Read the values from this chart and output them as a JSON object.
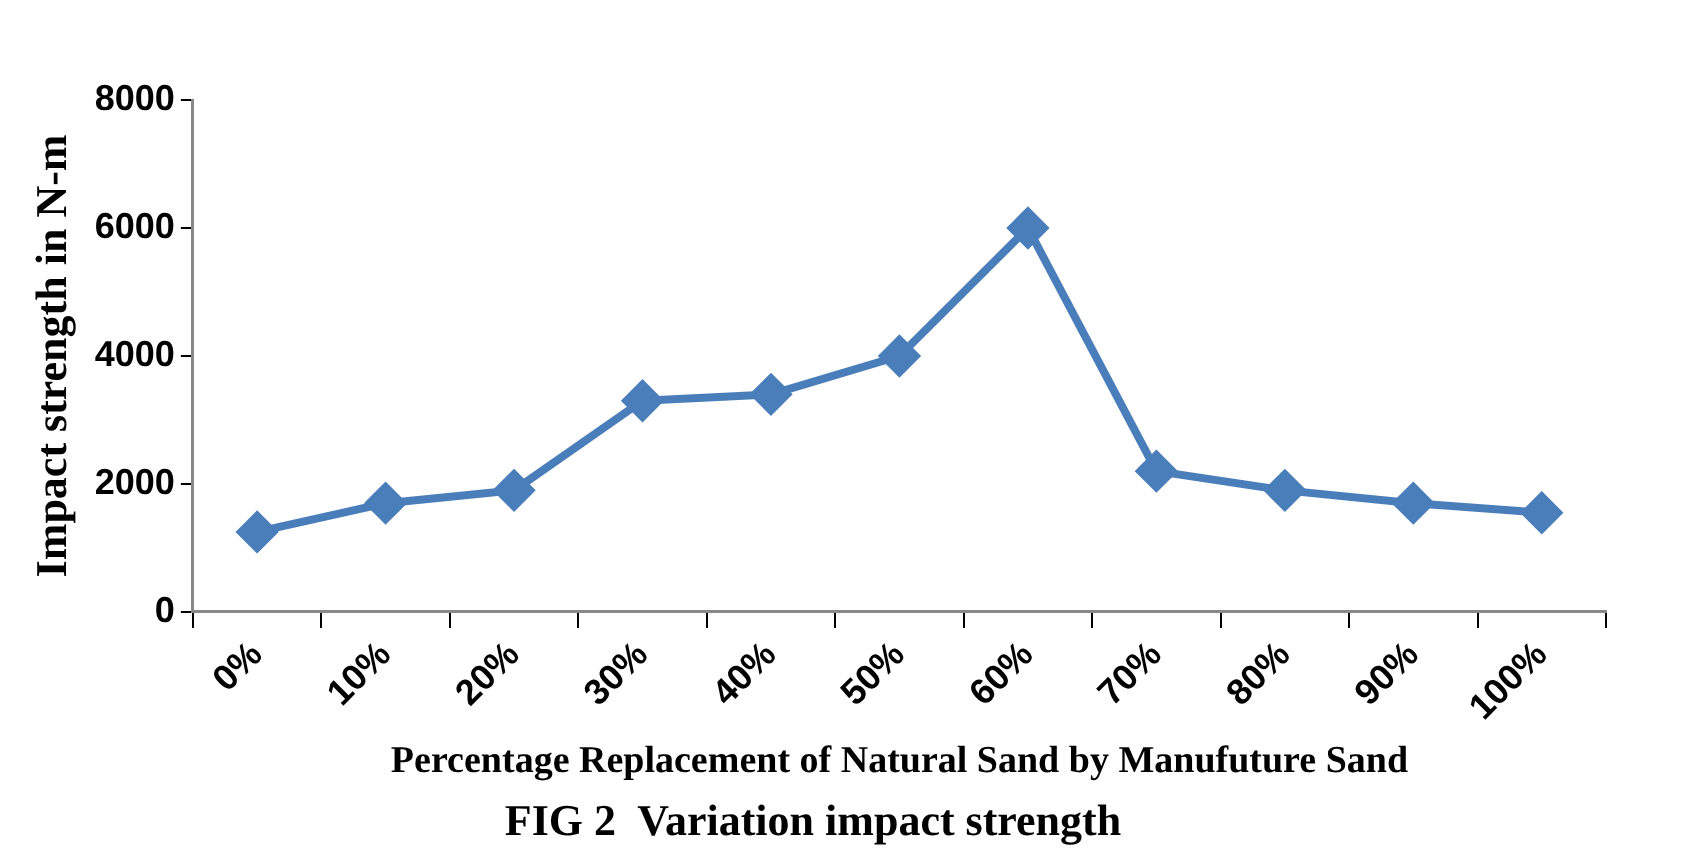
{
  "chart_data": {
    "type": "line",
    "title": "FIG 2  Variation impact strength",
    "xlabel": "Percentage Replacement of Natural Sand by Manufuture Sand",
    "ylabel": "Impact strength in N-m",
    "categories": [
      "0%",
      "10%",
      "20%",
      "30%",
      "40%",
      "50%",
      "60%",
      "70%",
      "80%",
      "90%",
      "100%"
    ],
    "series": [
      {
        "color": "#4a7ebb",
        "values": [
          1250,
          1700,
          1900,
          3300,
          3400,
          4000,
          6000,
          2200,
          1900,
          1700,
          1550
        ]
      }
    ],
    "ylim": [
      0,
      8000
    ],
    "yticks": [
      0,
      2000,
      4000,
      6000,
      8000
    ],
    "grid": false,
    "legend": false,
    "marker": "diamond",
    "line_style": "solid"
  }
}
